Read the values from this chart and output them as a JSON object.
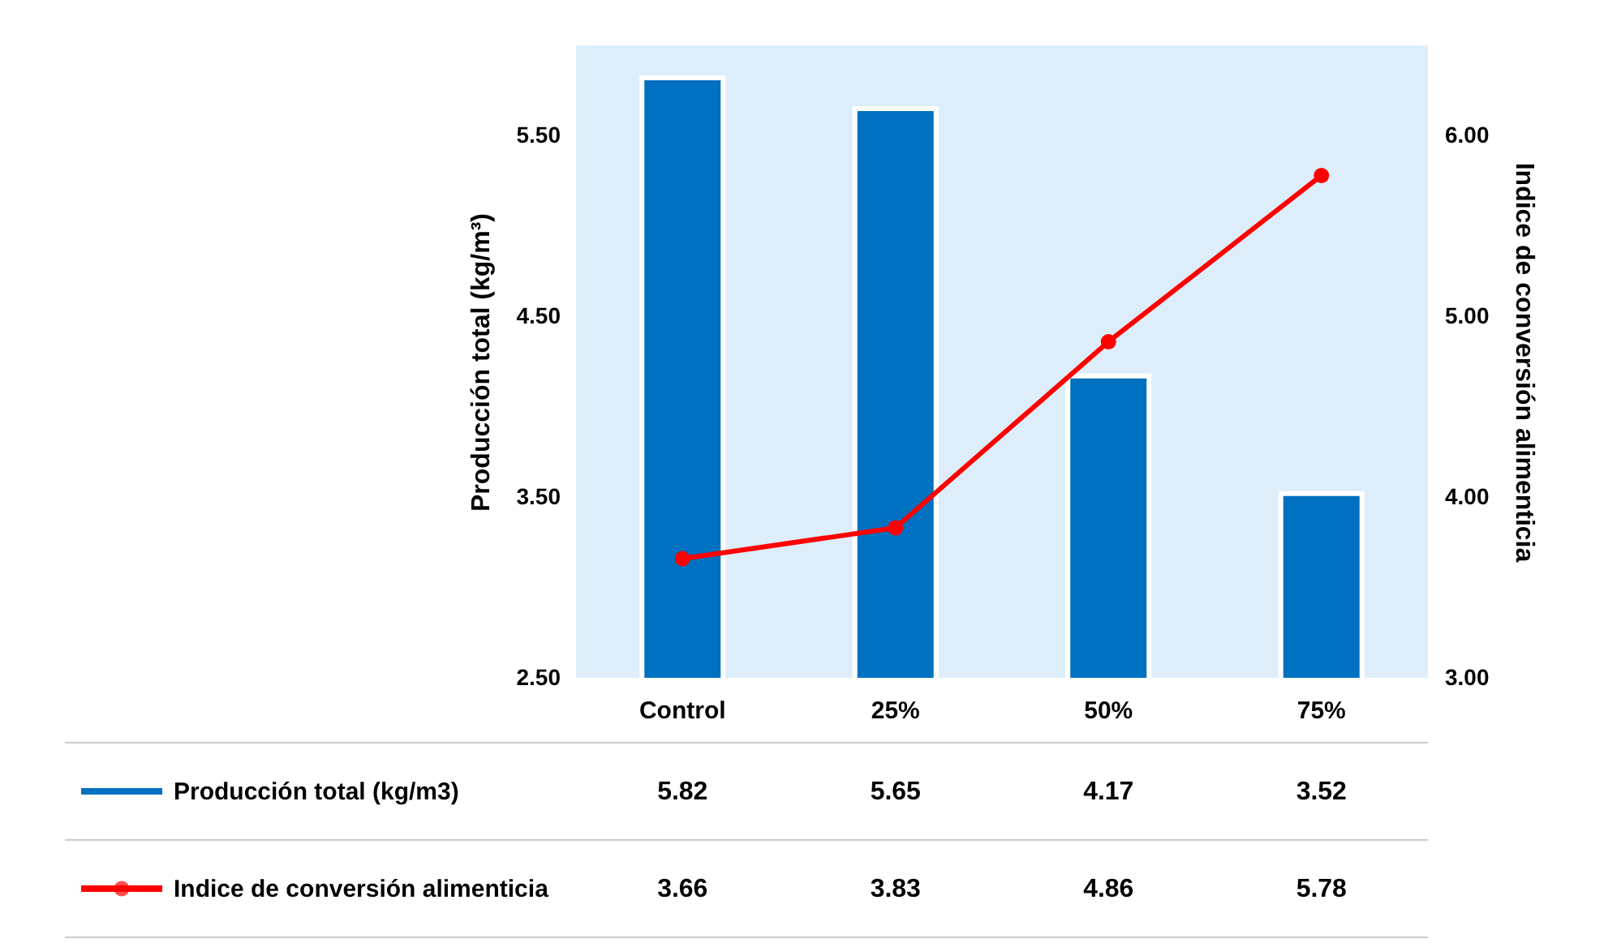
{
  "chart_data": {
    "type": "bar",
    "categories": [
      "Control",
      "25%",
      "50%",
      "75%"
    ],
    "ylabel": "Producción total (kg/m³)",
    "y2label": "Indice de conversión alimenticia",
    "ylim": [
      2.5,
      6.0
    ],
    "yticks": [
      {
        "value": 2.5,
        "label": "2.50"
      },
      {
        "value": 3.5,
        "label": "3.50"
      },
      {
        "value": 4.5,
        "label": "4.50"
      },
      {
        "value": 5.5,
        "label": "5.50"
      }
    ],
    "y2lim": [
      3.0,
      6.5
    ],
    "y2ticks": [
      {
        "value": 3,
        "label": "3.00"
      },
      {
        "value": 4,
        "label": "4.00"
      },
      {
        "value": 5,
        "label": "5.00"
      },
      {
        "value": 6,
        "label": "6.00"
      }
    ],
    "series": [
      {
        "name": "Producción total (kg/m3)",
        "color": "#0070c0",
        "values": [
          5.82,
          5.65,
          4.17,
          3.52
        ]
      },
      {
        "name": "Indice de conversión alimenticia",
        "type": "line",
        "axis": "y2",
        "color": "#ff0000",
        "marker": "circle",
        "values": [
          3.66,
          3.83,
          4.86,
          5.78
        ]
      }
    ],
    "data_labels": true,
    "legend": "bottom",
    "grid": false
  }
}
